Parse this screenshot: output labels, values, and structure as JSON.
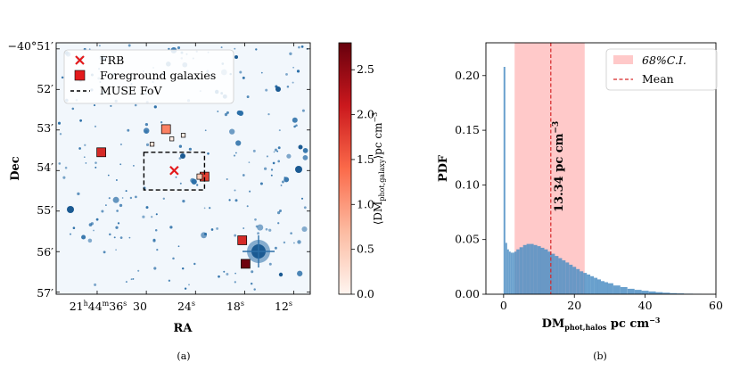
{
  "panels": {
    "a": {
      "caption": "(a)",
      "xlabel": "RA",
      "ylabel": "Dec",
      "yticks": [
        {
          "prefix": "−40°",
          "val": "51",
          "unit": "′"
        },
        {
          "prefix": "",
          "val": "52",
          "unit": "′"
        },
        {
          "prefix": "",
          "val": "53",
          "unit": "′"
        },
        {
          "prefix": "",
          "val": "54",
          "unit": "′"
        },
        {
          "prefix": "",
          "val": "55",
          "unit": "′"
        },
        {
          "prefix": "",
          "val": "56",
          "unit": "′"
        },
        {
          "prefix": "",
          "val": "57",
          "unit": "′"
        }
      ],
      "xticks": [
        {
          "h": "21",
          "m": "44",
          "s": "36"
        },
        {
          "s": "30"
        },
        {
          "s": "24"
        },
        {
          "s": "18"
        },
        {
          "s": "12"
        }
      ],
      "legend": [
        "FRB",
        "Foreground galaxies",
        "MUSE FoV"
      ],
      "colorbar": {
        "label_pre": "⟨DM",
        "label_sub": "phot,galaxy",
        "label_post": "⟩pc cm",
        "label_sup": "−3",
        "ticks": [
          "0.0",
          "0.5",
          "1.0",
          "1.5",
          "2.0",
          "2.5"
        ],
        "range": [
          0,
          2.8
        ]
      },
      "colors": {
        "background": "#f2f7fc",
        "source": "#2c6fa8",
        "frb": "#e31a1c",
        "muse": "#000000"
      }
    },
    "b": {
      "caption": "(b)",
      "annotation": "13.34 pc cm",
      "annotation_sup": "−3",
      "legend": [
        "68%C.I.",
        "Mean"
      ]
    }
  },
  "chart_data": [
    {
      "type": "scatter",
      "panel": "a",
      "xlabel": "RA",
      "ylabel": "Dec",
      "frb": {
        "ra_s": 26.6,
        "dec_min": 54.0
      },
      "muse_fov": {
        "ra_s": [
          22.9,
          30.3
        ],
        "dec_min": [
          53.55,
          54.48
        ]
      },
      "foreground_galaxies": [
        {
          "ra_s": 27.6,
          "dec_min": 52.98,
          "dm": 1.2
        },
        {
          "ra_s": 35.5,
          "dec_min": 53.55,
          "dm": 1.95
        },
        {
          "ra_s": 22.9,
          "dec_min": 54.15,
          "dm": 1.75
        },
        {
          "ra_s": 18.3,
          "dec_min": 55.72,
          "dm": 1.95
        },
        {
          "ra_s": 17.9,
          "dec_min": 56.3,
          "dm": 2.75
        },
        {
          "ra_s": 23.5,
          "dec_min": 54.15,
          "dm": 0.5
        },
        {
          "ra_s": 29.3,
          "dec_min": 53.35,
          "dm": 0.2
        },
        {
          "ra_s": 25.5,
          "dec_min": 53.13,
          "dm": 0.1
        },
        {
          "ra_s": 26.9,
          "dec_min": 53.22,
          "dm": 0.1
        }
      ]
    },
    {
      "type": "bar",
      "panel": "b",
      "xlabel": "DM",
      "xlabel_sub": "phot,halos",
      "xlabel_post": " pc cm",
      "xlabel_sup": "−3",
      "ylabel": "PDF",
      "xlim": [
        -5,
        60
      ],
      "ylim": [
        0,
        0.23
      ],
      "xticks": [
        0,
        20,
        40,
        60
      ],
      "yticks": [
        0.0,
        0.05,
        0.1,
        0.15,
        0.2
      ],
      "mean": 13.34,
      "ci68": [
        3.1,
        22.9
      ],
      "x": [
        0.25,
        0.75,
        1.25,
        1.75,
        2.25,
        2.75,
        3.25,
        4,
        5,
        6,
        7,
        8,
        9,
        10,
        11,
        12,
        13,
        14,
        15,
        16,
        17,
        18,
        19,
        20,
        21,
        22,
        23,
        24,
        25,
        26,
        27,
        28,
        29,
        30,
        32,
        34,
        36,
        38,
        40,
        42,
        44,
        46,
        48,
        50,
        52,
        55
      ],
      "values": [
        0.208,
        0.047,
        0.041,
        0.039,
        0.038,
        0.038,
        0.039,
        0.041,
        0.043,
        0.045,
        0.046,
        0.046,
        0.045,
        0.044,
        0.0425,
        0.041,
        0.039,
        0.037,
        0.035,
        0.033,
        0.031,
        0.029,
        0.027,
        0.025,
        0.023,
        0.021,
        0.0195,
        0.018,
        0.0165,
        0.015,
        0.0135,
        0.012,
        0.011,
        0.01,
        0.008,
        0.0065,
        0.005,
        0.004,
        0.0032,
        0.0025,
        0.0019,
        0.0014,
        0.001,
        0.0007,
        0.0005,
        0.0003
      ]
    }
  ]
}
